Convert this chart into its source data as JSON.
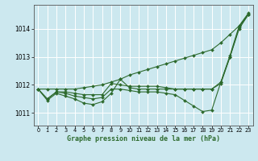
{
  "title": "Graphe pression niveau de la mer (hPa)",
  "bg_color": "#cce8ef",
  "grid_color": "#ffffff",
  "line_color": "#2d6a2d",
  "marker_color": "#2d6a2d",
  "xlim": [
    -0.5,
    23.5
  ],
  "ylim": [
    1010.55,
    1014.85
  ],
  "yticks": [
    1011,
    1012,
    1013,
    1014
  ],
  "xticks": [
    0,
    1,
    2,
    3,
    4,
    5,
    6,
    7,
    8,
    9,
    10,
    11,
    12,
    13,
    14,
    15,
    16,
    17,
    18,
    19,
    20,
    21,
    22,
    23
  ],
  "series": [
    [
      1011.85,
      1011.5,
      1011.75,
      1011.75,
      1011.7,
      1011.65,
      1011.65,
      1011.65,
      1012.05,
      1012.0,
      1011.95,
      1011.95,
      1011.95,
      1011.95,
      1011.9,
      1011.85,
      1011.85,
      1011.85,
      1011.85,
      1011.85,
      1012.05,
      1013.0,
      1014.0,
      1014.5
    ],
    [
      1011.85,
      1011.5,
      1011.75,
      1011.7,
      1011.6,
      1011.55,
      1011.5,
      1011.55,
      1011.85,
      1011.85,
      1011.8,
      1011.75,
      1011.75,
      1011.75,
      1011.7,
      1011.65,
      1011.45,
      1011.25,
      1011.05,
      1011.1,
      1012.1,
      1013.0,
      1014.05,
      1014.5
    ],
    [
      1011.85,
      1011.45,
      1011.7,
      1011.6,
      1011.5,
      1011.35,
      1011.3,
      1011.4,
      1011.7,
      1012.2,
      1011.9,
      1011.85,
      1011.85,
      1011.85,
      1011.85,
      1011.85,
      1011.85,
      1011.85,
      1011.85,
      1011.85,
      1012.1,
      1013.05,
      1014.1,
      1014.55
    ],
    [
      1011.85,
      1011.85,
      1011.85,
      1011.85,
      1011.85,
      1011.9,
      1011.95,
      1012.0,
      1012.1,
      1012.2,
      1012.35,
      1012.45,
      1012.55,
      1012.65,
      1012.75,
      1012.85,
      1012.95,
      1013.05,
      1013.15,
      1013.25,
      1013.5,
      1013.8,
      1014.1,
      1014.5
    ]
  ]
}
